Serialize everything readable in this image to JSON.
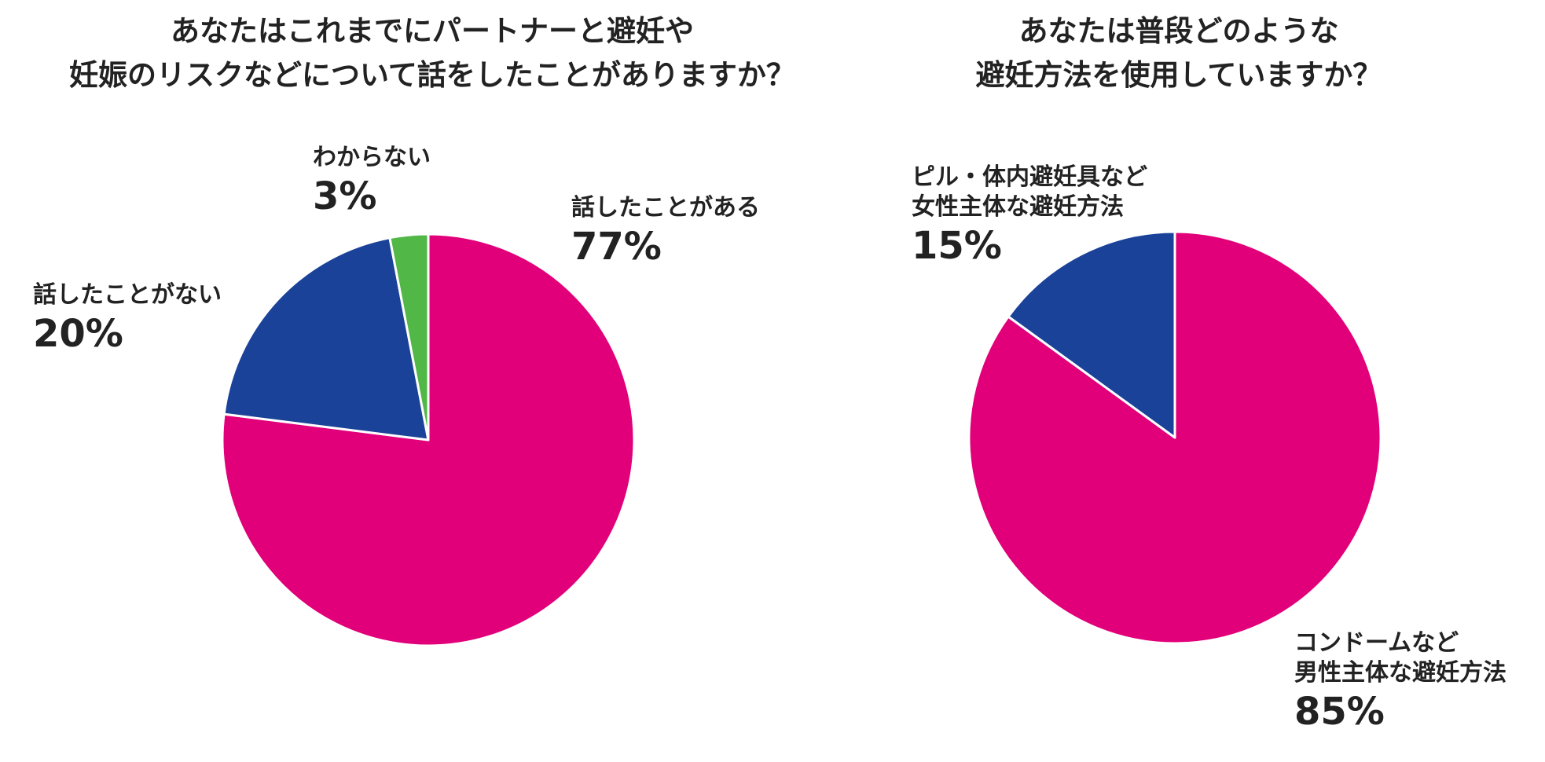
{
  "chart_data": [
    {
      "type": "pie",
      "title": [
        "あなたはこれまでにパートナーと避妊や",
        "妊娠のリスクなどについて話をしたことがありますか？"
      ],
      "start_angle": "12 o'clock, clockwise",
      "slices": [
        {
          "label": [
            "話したことがある"
          ],
          "value": 77,
          "value_text": "77%",
          "color": "#e2007a"
        },
        {
          "label": [
            "話したことがない"
          ],
          "value": 20,
          "value_text": "20%",
          "color": "#1b4299"
        },
        {
          "label": [
            "わからない"
          ],
          "value": 3,
          "value_text": "3%",
          "color": "#51b847"
        }
      ]
    },
    {
      "type": "pie",
      "title": [
        "あなたは普段どのような",
        "避妊方法を使用していますか？"
      ],
      "start_angle": "12 o'clock, clockwise",
      "slices": [
        {
          "label": [
            "コンドームなど",
            "男性主体な避妊方法"
          ],
          "value": 85,
          "value_text": "85%",
          "color": "#e2007a"
        },
        {
          "label": [
            "ピル・体内避妊具など",
            "女性主体な避妊方法"
          ],
          "value": 15,
          "value_text": "15%",
          "color": "#1b4299"
        }
      ]
    }
  ],
  "style": {
    "slice_border": "#ffffff"
  }
}
